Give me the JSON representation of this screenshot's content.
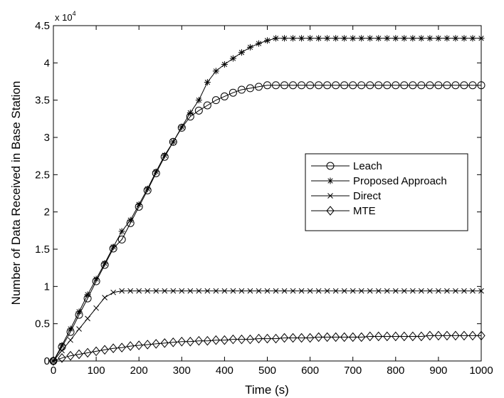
{
  "chart_data": {
    "type": "line",
    "title": "",
    "xlabel": "Time (s)",
    "ylabel": "Number of Data Received in Base Station",
    "y_exponent_label": "x 10",
    "y_exponent_power": "4",
    "xlim": [
      0,
      1000
    ],
    "ylim": [
      0,
      4.5
    ],
    "x_ticks": [
      0,
      100,
      200,
      300,
      400,
      500,
      600,
      700,
      800,
      900,
      1000
    ],
    "x_tick_labels": [
      "0",
      "100",
      "200",
      "300",
      "400",
      "500",
      "600",
      "700",
      "800",
      "900",
      "1000"
    ],
    "y_ticks": [
      0,
      0.5,
      1,
      1.5,
      2,
      2.5,
      3,
      3.5,
      4,
      4.5
    ],
    "y_tick_labels": [
      "0",
      "0.5",
      "1",
      "1.5",
      "2",
      "2.5",
      "3",
      "3.5",
      "4",
      "4.5"
    ],
    "grid": false,
    "legend_position": "center-right",
    "x": [
      0,
      20,
      40,
      60,
      80,
      100,
      120,
      140,
      160,
      180,
      200,
      220,
      240,
      260,
      280,
      300,
      320,
      340,
      360,
      380,
      400,
      420,
      440,
      460,
      480,
      500,
      520,
      540,
      560,
      580,
      600,
      620,
      640,
      660,
      680,
      700,
      720,
      740,
      760,
      780,
      800,
      820,
      840,
      860,
      880,
      900,
      920,
      940,
      960,
      980,
      1000
    ],
    "series": [
      {
        "name": "Leach",
        "marker": "circle",
        "values": [
          0,
          0.19,
          0.39,
          0.62,
          0.84,
          1.07,
          1.29,
          1.51,
          1.63,
          1.85,
          2.07,
          2.29,
          2.52,
          2.74,
          2.94,
          3.13,
          3.28,
          3.36,
          3.43,
          3.5,
          3.55,
          3.6,
          3.64,
          3.66,
          3.68,
          3.7,
          3.7,
          3.7,
          3.7,
          3.7,
          3.7,
          3.7,
          3.7,
          3.7,
          3.7,
          3.7,
          3.7,
          3.7,
          3.7,
          3.7,
          3.7,
          3.7,
          3.7,
          3.7,
          3.7,
          3.7,
          3.7,
          3.7,
          3.7,
          3.7,
          3.7
        ]
      },
      {
        "name": "Proposed Approach",
        "marker": "star",
        "values": [
          0,
          0.21,
          0.43,
          0.66,
          0.89,
          1.1,
          1.31,
          1.53,
          1.74,
          1.89,
          2.1,
          2.31,
          2.54,
          2.76,
          2.94,
          3.14,
          3.33,
          3.5,
          3.74,
          3.89,
          3.98,
          4.06,
          4.14,
          4.21,
          4.26,
          4.3,
          4.33,
          4.33,
          4.33,
          4.33,
          4.33,
          4.33,
          4.33,
          4.33,
          4.33,
          4.33,
          4.33,
          4.33,
          4.33,
          4.33,
          4.33,
          4.33,
          4.33,
          4.33,
          4.33,
          4.33,
          4.33,
          4.33,
          4.33,
          4.33,
          4.33
        ]
      },
      {
        "name": "Direct",
        "marker": "x",
        "values": [
          0,
          0.14,
          0.28,
          0.43,
          0.57,
          0.71,
          0.85,
          0.92,
          0.94,
          0.94,
          0.94,
          0.94,
          0.94,
          0.94,
          0.94,
          0.94,
          0.94,
          0.94,
          0.94,
          0.94,
          0.94,
          0.94,
          0.94,
          0.94,
          0.94,
          0.94,
          0.94,
          0.94,
          0.94,
          0.94,
          0.94,
          0.94,
          0.94,
          0.94,
          0.94,
          0.94,
          0.94,
          0.94,
          0.94,
          0.94,
          0.94,
          0.94,
          0.94,
          0.94,
          0.94,
          0.94,
          0.94,
          0.94,
          0.94,
          0.94,
          0.94
        ]
      },
      {
        "name": "MTE",
        "marker": "diamond",
        "values": [
          0,
          0.04,
          0.07,
          0.09,
          0.11,
          0.13,
          0.15,
          0.17,
          0.18,
          0.2,
          0.21,
          0.22,
          0.23,
          0.24,
          0.25,
          0.26,
          0.26,
          0.27,
          0.27,
          0.28,
          0.28,
          0.29,
          0.29,
          0.29,
          0.3,
          0.3,
          0.3,
          0.31,
          0.31,
          0.31,
          0.31,
          0.32,
          0.32,
          0.32,
          0.32,
          0.32,
          0.32,
          0.33,
          0.33,
          0.33,
          0.33,
          0.33,
          0.33,
          0.33,
          0.34,
          0.34,
          0.34,
          0.34,
          0.34,
          0.34,
          0.34
        ]
      }
    ]
  }
}
